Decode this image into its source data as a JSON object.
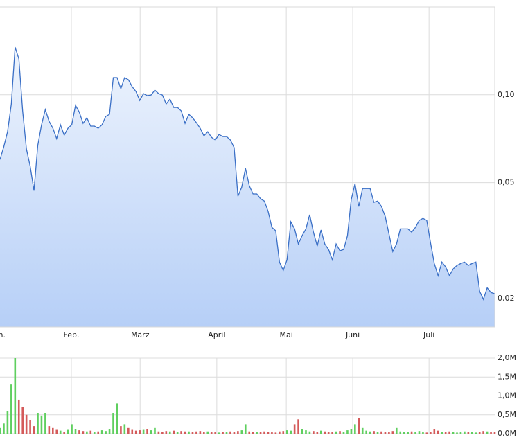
{
  "chart_data": [
    {
      "type": "line",
      "log_scale": true,
      "grid": true,
      "color": "#3a6fc6",
      "values": [
        0.06,
        0.0663,
        0.0747,
        0.093,
        0.1456,
        0.1327,
        0.088,
        0.0652,
        0.0568,
        0.0469,
        0.067,
        0.0789,
        0.089,
        0.0811,
        0.0768,
        0.0707,
        0.0789,
        0.0727,
        0.0768,
        0.0789,
        0.092,
        0.0871,
        0.0798,
        0.0834,
        0.0781,
        0.0781,
        0.0768,
        0.0789,
        0.0843,
        0.0857,
        0.1145,
        0.1145,
        0.1049,
        0.1145,
        0.1126,
        0.1066,
        0.1026,
        0.0956,
        0.1009,
        0.0993,
        0.0998,
        0.1037,
        0.1009,
        0.0998,
        0.093,
        0.0966,
        0.0905,
        0.0905,
        0.088,
        0.0798,
        0.0857,
        0.0834,
        0.0802,
        0.0768,
        0.0723,
        0.0747,
        0.0715,
        0.07,
        0.0731,
        0.0719,
        0.0719,
        0.07,
        0.0659,
        0.0449,
        0.0482,
        0.0559,
        0.0488,
        0.0457,
        0.0457,
        0.044,
        0.0432,
        0.0398,
        0.0351,
        0.0342,
        0.0267,
        0.025,
        0.0272,
        0.0367,
        0.0347,
        0.0308,
        0.0329,
        0.0347,
        0.0388,
        0.0338,
        0.0303,
        0.0344,
        0.0308,
        0.0295,
        0.0272,
        0.0308,
        0.0292,
        0.0295,
        0.0329,
        0.0437,
        0.0496,
        0.0414,
        0.0477,
        0.0477,
        0.0477,
        0.0428,
        0.0432,
        0.0414,
        0.0383,
        0.0333,
        0.029,
        0.0308,
        0.0347,
        0.0347,
        0.0347,
        0.0338,
        0.0351,
        0.0371,
        0.0377,
        0.0371,
        0.0311,
        0.0264,
        0.024,
        0.0267,
        0.0257,
        0.024,
        0.0253,
        0.026,
        0.0264,
        0.0267,
        0.026,
        0.0264,
        0.0267,
        0.0212,
        0.0199,
        0.0218,
        0.021,
        0.0208
      ],
      "xlim": [
        0,
        131
      ],
      "xticks": [
        {
          "value": 0.5,
          "label": "n."
        },
        {
          "value": 18.9,
          "label": "Feb."
        },
        {
          "value": 37.1,
          "label": "März"
        },
        {
          "value": 57.4,
          "label": "April"
        },
        {
          "value": 75.8,
          "label": "Mai"
        },
        {
          "value": 93.4,
          "label": "Juni"
        },
        {
          "value": 113.6,
          "label": "Juli"
        }
      ],
      "ylim": [
        0.016,
        0.2
      ],
      "yticks": [
        {
          "value": 0.1,
          "label": "0,10"
        },
        {
          "value": 0.05,
          "label": "0,05"
        },
        {
          "value": 0.02,
          "label": "0,02"
        }
      ]
    },
    {
      "type": "bar",
      "grid": true,
      "up_color": "#5fcf5f",
      "down_color": "#d45a5a",
      "values": [
        150000,
        270000,
        600000,
        1300000,
        2000000,
        900000,
        700000,
        500000,
        350000,
        200000,
        550000,
        480000,
        550000,
        200000,
        150000,
        100000,
        80000,
        50000,
        100000,
        250000,
        120000,
        90000,
        70000,
        60000,
        80000,
        50000,
        60000,
        90000,
        70000,
        120000,
        550000,
        800000,
        200000,
        250000,
        150000,
        100000,
        80000,
        90000,
        100000,
        110000,
        90000,
        150000,
        60000,
        50000,
        70000,
        60000,
        80000,
        50000,
        70000,
        60000,
        60000,
        50000,
        60000,
        70000,
        40000,
        60000,
        50000,
        40000,
        30000,
        50000,
        40000,
        60000,
        50000,
        70000,
        90000,
        250000,
        60000,
        50000,
        40000,
        50000,
        60000,
        40000,
        50000,
        30000,
        60000,
        70000,
        90000,
        80000,
        250000,
        380000,
        120000,
        90000,
        60000,
        70000,
        50000,
        80000,
        60000,
        50000,
        40000,
        60000,
        70000,
        50000,
        90000,
        120000,
        250000,
        420000,
        150000,
        80000,
        60000,
        70000,
        50000,
        60000,
        40000,
        50000,
        70000,
        150000,
        60000,
        50000,
        40000,
        60000,
        50000,
        70000,
        40000,
        30000,
        50000,
        120000,
        80000,
        50000,
        40000,
        60000,
        50000,
        30000,
        40000,
        60000,
        50000,
        40000,
        30000,
        50000,
        70000,
        60000,
        40000,
        50000
      ],
      "xlim": [
        0,
        131
      ],
      "ylim": [
        0,
        2000000
      ],
      "yticks": [
        {
          "value": 0,
          "label": "0,0M"
        },
        {
          "value": 500000,
          "label": "0,5M"
        },
        {
          "value": 1000000,
          "label": "1,0M"
        },
        {
          "value": 1500000,
          "label": "1,5M"
        },
        {
          "value": 2000000,
          "label": "2,0M"
        }
      ]
    }
  ]
}
